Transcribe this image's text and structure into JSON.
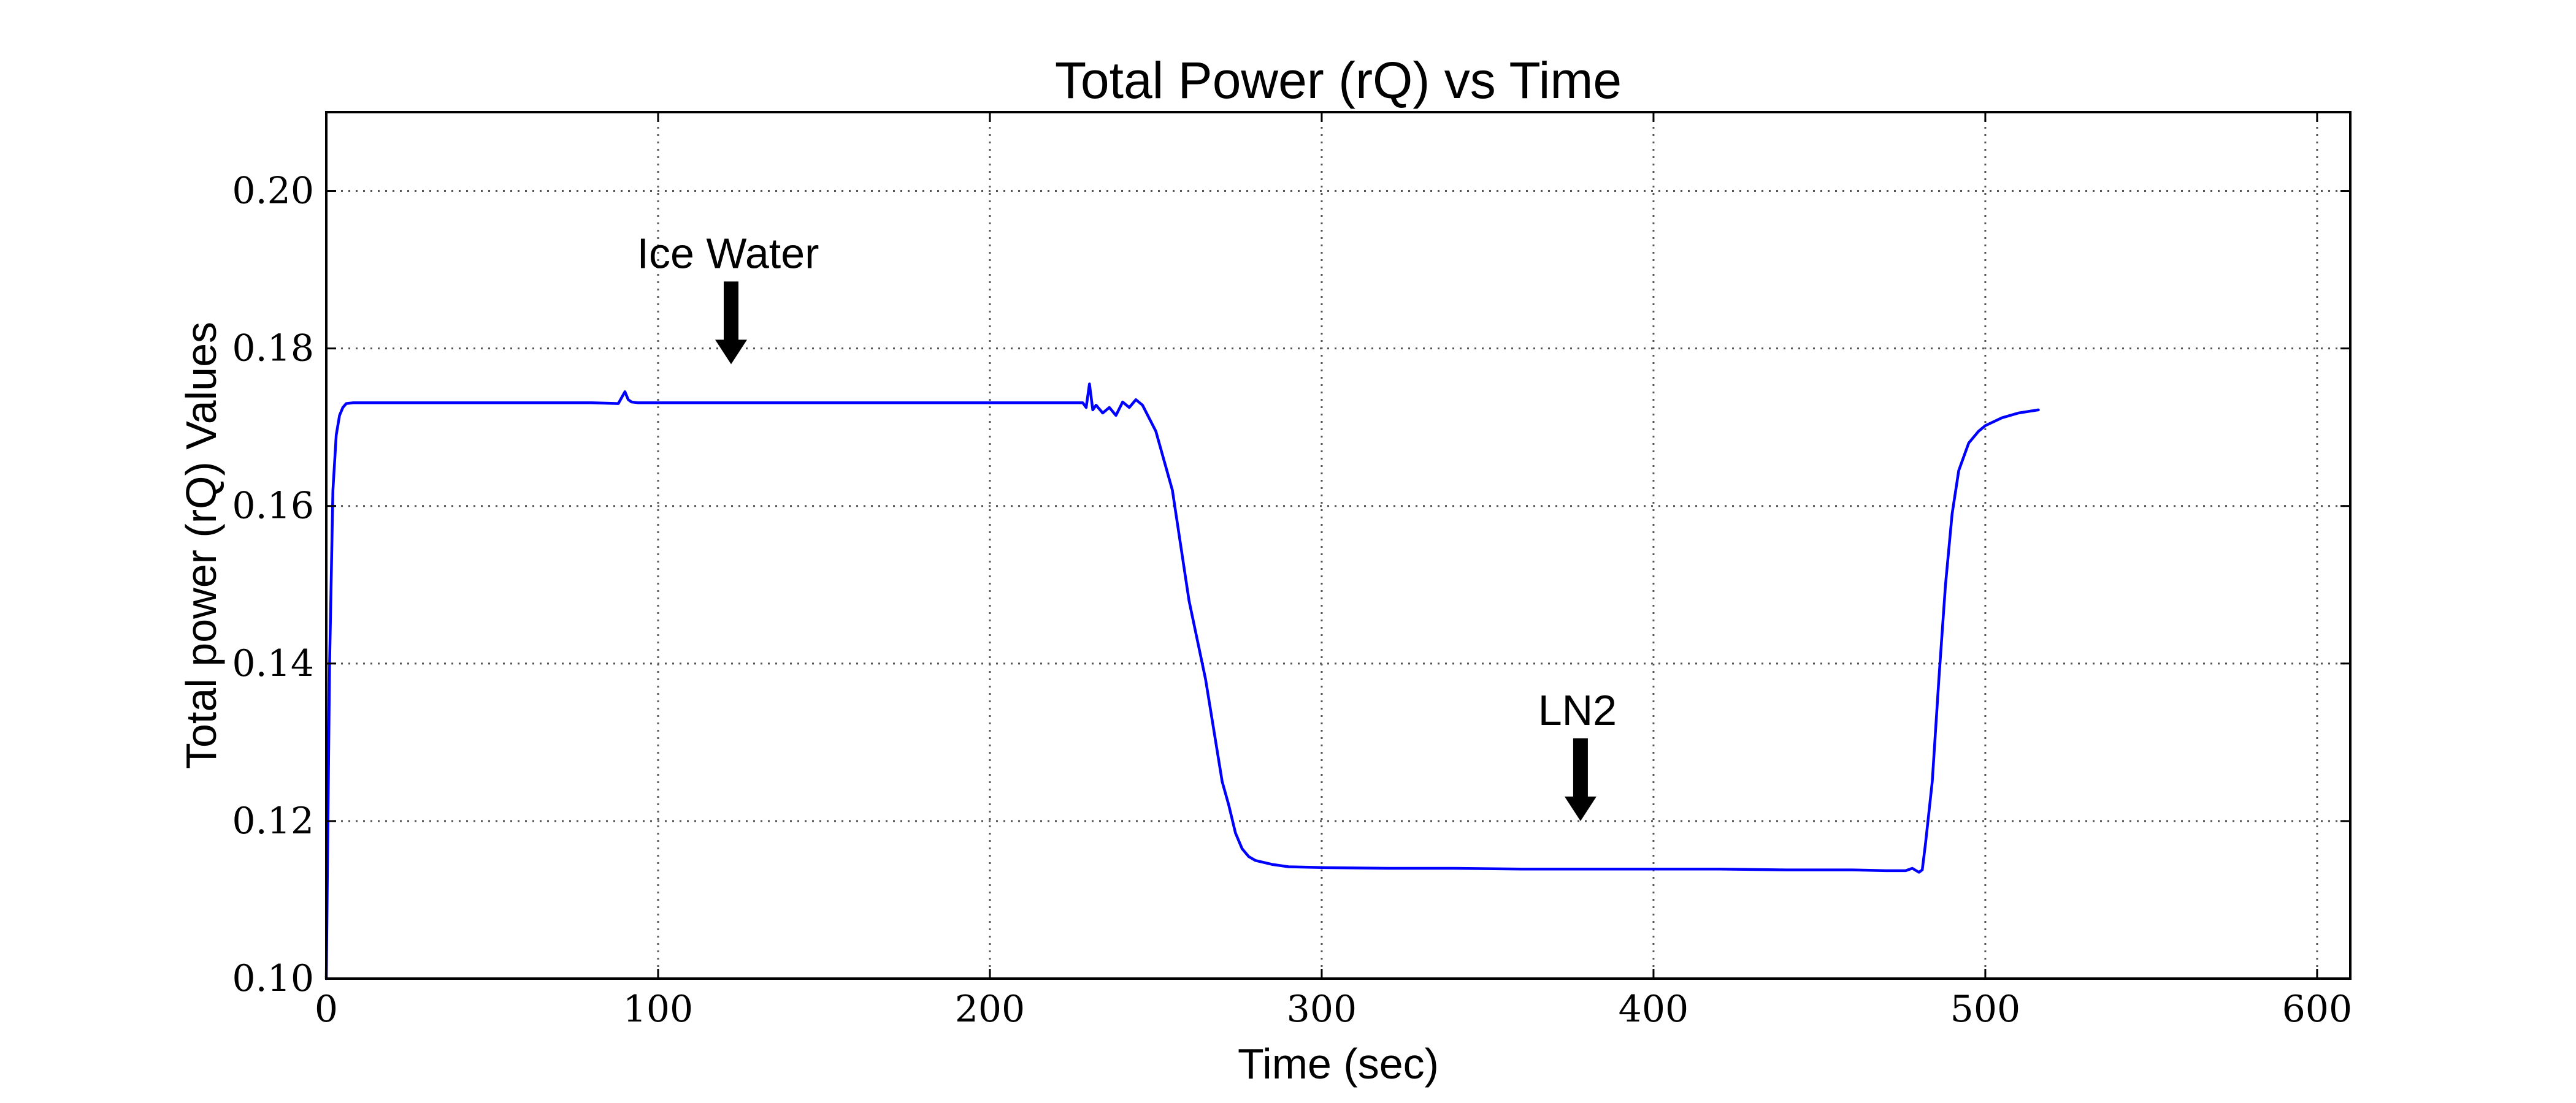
{
  "chart_data": {
    "type": "line",
    "title": "Total Power (rQ) vs Time",
    "xlabel": "Time (sec)",
    "ylabel": "Total power (rQ) Values",
    "xlim": [
      0,
      610
    ],
    "ylim": [
      0.1,
      0.21
    ],
    "x_ticks": [
      0,
      100,
      200,
      300,
      400,
      500,
      600
    ],
    "y_ticks": [
      0.1,
      0.12,
      0.14,
      0.16,
      0.18,
      0.2
    ],
    "x_tick_labels": [
      "0",
      "100",
      "200",
      "300",
      "400",
      "500",
      "600"
    ],
    "y_tick_labels": [
      "0.10",
      "0.12",
      "0.14",
      "0.16",
      "0.18",
      "0.20"
    ],
    "grid": true,
    "series": [
      {
        "color": "#0000ff",
        "x": [
          0,
          1,
          2,
          3,
          4,
          5,
          6,
          8,
          10,
          20,
          40,
          60,
          80,
          88,
          90,
          91,
          92,
          94,
          100,
          120,
          140,
          160,
          180,
          200,
          220,
          228,
          229,
          230,
          231,
          232,
          234,
          236,
          238,
          240,
          242,
          244,
          246,
          250,
          255,
          260,
          265,
          270,
          272,
          274,
          276,
          278,
          280,
          285,
          290,
          300,
          320,
          340,
          360,
          380,
          400,
          420,
          440,
          460,
          470,
          476,
          478,
          480,
          481,
          482,
          484,
          486,
          488,
          490,
          492,
          495,
          498,
          500,
          505,
          510,
          516
        ],
        "y": [
          0.1,
          0.14,
          0.162,
          0.169,
          0.1715,
          0.1725,
          0.173,
          0.1731,
          0.1731,
          0.1731,
          0.1731,
          0.1731,
          0.1731,
          0.173,
          0.1745,
          0.1735,
          0.1732,
          0.1731,
          0.1731,
          0.1731,
          0.1731,
          0.1731,
          0.1731,
          0.1731,
          0.1731,
          0.1731,
          0.1725,
          0.1755,
          0.1722,
          0.1728,
          0.1718,
          0.1725,
          0.1715,
          0.1732,
          0.1725,
          0.1735,
          0.1728,
          0.1695,
          0.162,
          0.148,
          0.138,
          0.125,
          0.122,
          0.1185,
          0.1165,
          0.1155,
          0.115,
          0.1145,
          0.1142,
          0.1141,
          0.114,
          0.114,
          0.1139,
          0.1139,
          0.1139,
          0.1139,
          0.1138,
          0.1138,
          0.1137,
          0.1137,
          0.114,
          0.1135,
          0.1138,
          0.1172,
          0.125,
          0.138,
          0.15,
          0.159,
          0.1645,
          0.168,
          0.1695,
          0.1702,
          0.1712,
          0.1718,
          0.1722
        ]
      }
    ],
    "annotations": [
      {
        "text": "Ice Water",
        "x": 122,
        "y": 0.178
      },
      {
        "text": "LN2",
        "x": 378,
        "y": 0.12
      }
    ]
  }
}
